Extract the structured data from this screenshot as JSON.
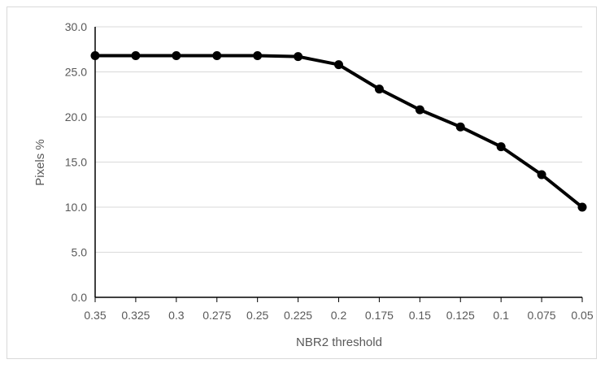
{
  "chart_data": {
    "type": "line",
    "title": "",
    "xlabel": "NBR2 threshold",
    "ylabel": "Pixels %",
    "categories": [
      "0.35",
      "0.325",
      "0.3",
      "0.275",
      "0.25",
      "0.225",
      "0.2",
      "0.175",
      "0.15",
      "0.125",
      "0.1",
      "0.075",
      "0.05"
    ],
    "yticks": [
      "0.0",
      "5.0",
      "10.0",
      "15.0",
      "20.0",
      "25.0",
      "30.0"
    ],
    "ylim": [
      0,
      30
    ],
    "grid": true,
    "legend": "none",
    "series": [
      {
        "values": [
          26.8,
          26.8,
          26.8,
          26.8,
          26.8,
          26.7,
          25.8,
          23.1,
          20.8,
          18.9,
          16.7,
          13.6,
          10.0
        ],
        "color": "#000000"
      }
    ]
  }
}
